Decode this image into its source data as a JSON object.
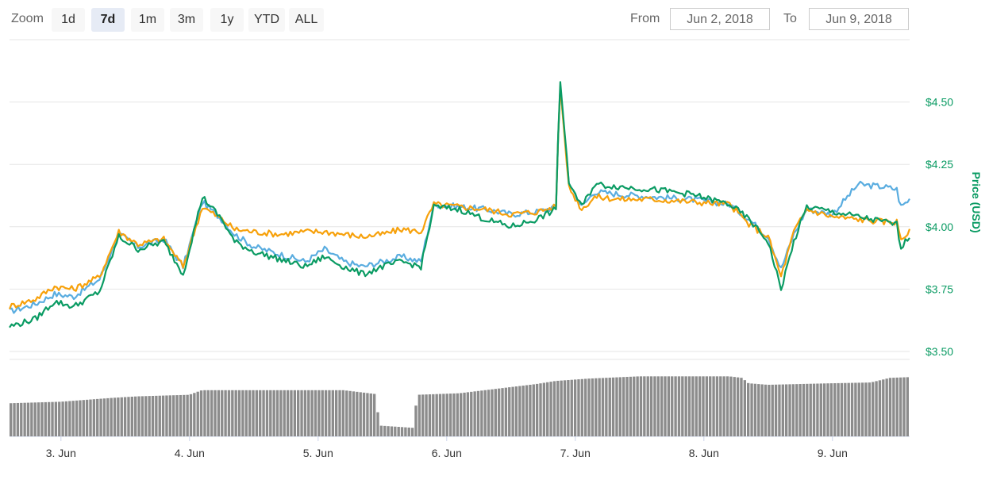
{
  "toolbar": {
    "zoom_label": "Zoom",
    "zoom_buttons": [
      {
        "label": "1d",
        "active": false
      },
      {
        "label": "7d",
        "active": true
      },
      {
        "label": "1m",
        "active": false
      },
      {
        "label": "3m",
        "active": false
      },
      {
        "label": "1y",
        "active": false
      },
      {
        "label": "YTD",
        "active": false
      },
      {
        "label": "ALL",
        "active": false
      }
    ],
    "from_label": "From",
    "from_value": "Jun 2, 2018",
    "to_label": "To",
    "to_value": "Jun 9, 2018"
  },
  "chart_data": {
    "type": "line",
    "ylabel": "Price (USD)",
    "y_ticks": [
      "$3.50",
      "$3.75",
      "$4.00",
      "$4.25",
      "$4.50"
    ],
    "ylim": [
      3.5,
      4.75
    ],
    "x_ticks": [
      "3. Jun",
      "4. Jun",
      "5. Jun",
      "6. Jun",
      "7. Jun",
      "8. Jun",
      "9. Jun"
    ],
    "x_range_days": [
      2.6,
      9.6
    ],
    "grid": true,
    "colors": {
      "blue": "#5aade0",
      "orange": "#f7a10b",
      "green": "#0a9b63",
      "volume": "#8c8c8c",
      "axis_text": "#0a9b63"
    },
    "series": [
      {
        "color_key": "blue",
        "points": [
          [
            2.6,
            3.66
          ],
          [
            2.8,
            3.69
          ],
          [
            2.95,
            3.73
          ],
          [
            3.1,
            3.72
          ],
          [
            3.3,
            3.79
          ],
          [
            3.45,
            3.97
          ],
          [
            3.6,
            3.92
          ],
          [
            3.8,
            3.95
          ],
          [
            3.95,
            3.84
          ],
          [
            4.1,
            4.1
          ],
          [
            4.25,
            4.03
          ],
          [
            4.35,
            3.97
          ],
          [
            4.5,
            3.92
          ],
          [
            4.7,
            3.89
          ],
          [
            4.9,
            3.86
          ],
          [
            5.05,
            3.91
          ],
          [
            5.2,
            3.86
          ],
          [
            5.35,
            3.84
          ],
          [
            5.5,
            3.86
          ],
          [
            5.65,
            3.88
          ],
          [
            5.8,
            3.86
          ],
          [
            5.9,
            4.09
          ],
          [
            6.1,
            4.08
          ],
          [
            6.3,
            4.07
          ],
          [
            6.5,
            4.05
          ],
          [
            6.7,
            4.06
          ],
          [
            6.85,
            4.08
          ],
          [
            6.88,
            4.58
          ],
          [
            6.95,
            4.18
          ],
          [
            7.05,
            4.08
          ],
          [
            7.15,
            4.14
          ],
          [
            7.35,
            4.13
          ],
          [
            7.6,
            4.12
          ],
          [
            7.9,
            4.11
          ],
          [
            8.2,
            4.09
          ],
          [
            8.35,
            4.03
          ],
          [
            8.5,
            3.96
          ],
          [
            8.6,
            3.83
          ],
          [
            8.7,
            3.97
          ],
          [
            8.8,
            4.07
          ],
          [
            9.0,
            4.05
          ],
          [
            9.2,
            4.17
          ],
          [
            9.4,
            4.16
          ],
          [
            9.5,
            4.15
          ],
          [
            9.53,
            4.08
          ],
          [
            9.6,
            4.11
          ]
        ]
      },
      {
        "color_key": "orange",
        "points": [
          [
            2.6,
            3.68
          ],
          [
            2.8,
            3.71
          ],
          [
            2.95,
            3.76
          ],
          [
            3.1,
            3.75
          ],
          [
            3.3,
            3.8
          ],
          [
            3.45,
            3.98
          ],
          [
            3.6,
            3.93
          ],
          [
            3.8,
            3.95
          ],
          [
            3.95,
            3.84
          ],
          [
            4.1,
            4.08
          ],
          [
            4.25,
            4.03
          ],
          [
            4.35,
            3.99
          ],
          [
            4.5,
            3.98
          ],
          [
            4.7,
            3.97
          ],
          [
            4.9,
            3.98
          ],
          [
            5.05,
            3.98
          ],
          [
            5.2,
            3.97
          ],
          [
            5.35,
            3.96
          ],
          [
            5.5,
            3.97
          ],
          [
            5.65,
            3.99
          ],
          [
            5.8,
            3.98
          ],
          [
            5.9,
            4.09
          ],
          [
            6.1,
            4.08
          ],
          [
            6.3,
            4.07
          ],
          [
            6.5,
            4.05
          ],
          [
            6.7,
            4.06
          ],
          [
            6.85,
            4.08
          ],
          [
            6.88,
            4.58
          ],
          [
            6.95,
            4.16
          ],
          [
            7.05,
            4.07
          ],
          [
            7.15,
            4.12
          ],
          [
            7.35,
            4.11
          ],
          [
            7.6,
            4.11
          ],
          [
            7.9,
            4.1
          ],
          [
            8.2,
            4.09
          ],
          [
            8.35,
            4.01
          ],
          [
            8.5,
            3.96
          ],
          [
            8.6,
            3.8
          ],
          [
            8.7,
            3.98
          ],
          [
            8.8,
            4.07
          ],
          [
            9.0,
            4.04
          ],
          [
            9.2,
            4.03
          ],
          [
            9.4,
            4.02
          ],
          [
            9.5,
            4.02
          ],
          [
            9.53,
            3.95
          ],
          [
            9.6,
            3.98
          ]
        ]
      },
      {
        "color_key": "green",
        "points": [
          [
            2.6,
            3.6
          ],
          [
            2.8,
            3.63
          ],
          [
            2.95,
            3.7
          ],
          [
            3.1,
            3.68
          ],
          [
            3.3,
            3.74
          ],
          [
            3.45,
            3.96
          ],
          [
            3.6,
            3.91
          ],
          [
            3.8,
            3.94
          ],
          [
            3.95,
            3.81
          ],
          [
            4.1,
            4.12
          ],
          [
            4.25,
            4.03
          ],
          [
            4.35,
            3.94
          ],
          [
            4.5,
            3.9
          ],
          [
            4.7,
            3.87
          ],
          [
            4.9,
            3.84
          ],
          [
            5.05,
            3.88
          ],
          [
            5.2,
            3.84
          ],
          [
            5.35,
            3.81
          ],
          [
            5.5,
            3.84
          ],
          [
            5.65,
            3.86
          ],
          [
            5.8,
            3.84
          ],
          [
            5.9,
            4.08
          ],
          [
            6.1,
            4.07
          ],
          [
            6.3,
            4.03
          ],
          [
            6.5,
            4.0
          ],
          [
            6.7,
            4.03
          ],
          [
            6.85,
            4.07
          ],
          [
            6.88,
            4.6
          ],
          [
            6.95,
            4.18
          ],
          [
            7.05,
            4.08
          ],
          [
            7.15,
            4.17
          ],
          [
            7.35,
            4.16
          ],
          [
            7.6,
            4.15
          ],
          [
            7.9,
            4.13
          ],
          [
            8.2,
            4.09
          ],
          [
            8.35,
            4.03
          ],
          [
            8.5,
            3.94
          ],
          [
            8.6,
            3.75
          ],
          [
            8.7,
            3.94
          ],
          [
            8.8,
            4.08
          ],
          [
            9.0,
            4.06
          ],
          [
            9.2,
            4.04
          ],
          [
            9.4,
            4.02
          ],
          [
            9.5,
            4.01
          ],
          [
            9.53,
            3.92
          ],
          [
            9.6,
            3.96
          ]
        ]
      }
    ],
    "volume_relative": [
      [
        2.6,
        0.43
      ],
      [
        3.0,
        0.45
      ],
      [
        3.4,
        0.5
      ],
      [
        3.6,
        0.52
      ],
      [
        4.0,
        0.54
      ],
      [
        4.1,
        0.6
      ],
      [
        4.5,
        0.6
      ],
      [
        4.9,
        0.6
      ],
      [
        5.2,
        0.6
      ],
      [
        5.3,
        0.58
      ],
      [
        5.45,
        0.55
      ],
      [
        5.48,
        0.14
      ],
      [
        5.75,
        0.11
      ],
      [
        5.77,
        0.54
      ],
      [
        6.1,
        0.56
      ],
      [
        6.4,
        0.62
      ],
      [
        6.7,
        0.68
      ],
      [
        6.85,
        0.72
      ],
      [
        7.1,
        0.75
      ],
      [
        7.5,
        0.78
      ],
      [
        7.8,
        0.78
      ],
      [
        8.2,
        0.78
      ],
      [
        8.3,
        0.76
      ],
      [
        8.35,
        0.69
      ],
      [
        8.5,
        0.67
      ],
      [
        9.0,
        0.69
      ],
      [
        9.3,
        0.7
      ],
      [
        9.45,
        0.76
      ],
      [
        9.6,
        0.77
      ]
    ]
  }
}
